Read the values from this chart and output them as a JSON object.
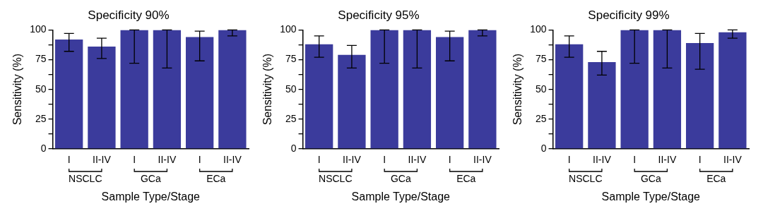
{
  "chart_data": [
    {
      "type": "bar",
      "title": "Specificity 90%",
      "xlabel": "Sample Type/Stage",
      "ylabel": "Sensitivity (%)",
      "categories": [
        "I",
        "II-IV",
        "I",
        "II-IV",
        "I",
        "II-IV"
      ],
      "annotations": [
        "NSCLC",
        "GCa",
        "ECa"
      ],
      "values": [
        92,
        86,
        100,
        100,
        94,
        100
      ],
      "errors": [
        [
          82,
          97
        ],
        [
          76,
          93
        ],
        [
          72,
          100
        ],
        [
          68,
          100
        ],
        [
          74,
          99
        ],
        [
          95,
          100
        ]
      ],
      "color": "#3b3b9c",
      "ylim": [
        0,
        100
      ],
      "yticks": [
        0,
        {
          "value": 12.5,
          "label": null
        },
        25,
        {
          "value": 37.5,
          "label": null
        },
        50,
        {
          "value": 62.5,
          "label": null
        },
        75,
        {
          "value": 87.5,
          "label": null
        },
        100
      ],
      "grid": false,
      "legend": false
    },
    {
      "type": "bar",
      "title": "Specificity 95%",
      "xlabel": "Sample Type/Stage",
      "ylabel": "Sensitivity (%)",
      "categories": [
        "I",
        "II-IV",
        "I",
        "II-IV",
        "I",
        "II-IV"
      ],
      "annotations": [
        "NSCLC",
        "GCa",
        "ECa"
      ],
      "values": [
        88,
        79,
        100,
        100,
        94,
        100
      ],
      "errors": [
        [
          77,
          95
        ],
        [
          68,
          87
        ],
        [
          72,
          100
        ],
        [
          68,
          100
        ],
        [
          74,
          99
        ],
        [
          95,
          100
        ]
      ],
      "color": "#3b3b9c",
      "ylim": [
        0,
        100
      ],
      "yticks": [
        0,
        {
          "value": 12.5,
          "label": null
        },
        25,
        {
          "value": 37.5,
          "label": null
        },
        50,
        {
          "value": 62.5,
          "label": null
        },
        75,
        {
          "value": 87.5,
          "label": null
        },
        100
      ],
      "grid": false,
      "legend": false
    },
    {
      "type": "bar",
      "title": "Specificity 99%",
      "xlabel": "Sample Type/Stage",
      "ylabel": "Sensitivity (%)",
      "categories": [
        "I",
        "II-IV",
        "I",
        "II-IV",
        "I",
        "II-IV"
      ],
      "annotations": [
        "NSCLC",
        "GCa",
        "ECa"
      ],
      "values": [
        88,
        73,
        100,
        100,
        89,
        98
      ],
      "errors": [
        [
          77,
          95
        ],
        [
          62,
          82
        ],
        [
          72,
          100
        ],
        [
          68,
          100
        ],
        [
          67,
          97
        ],
        [
          93,
          100
        ]
      ],
      "color": "#3b3b9c",
      "ylim": [
        0,
        100
      ],
      "yticks": [
        0,
        {
          "value": 12.5,
          "label": null
        },
        25,
        {
          "value": 37.5,
          "label": null
        },
        50,
        {
          "value": 62.5,
          "label": null
        },
        75,
        {
          "value": 87.5,
          "label": null
        },
        100
      ],
      "grid": false,
      "legend": false
    }
  ]
}
